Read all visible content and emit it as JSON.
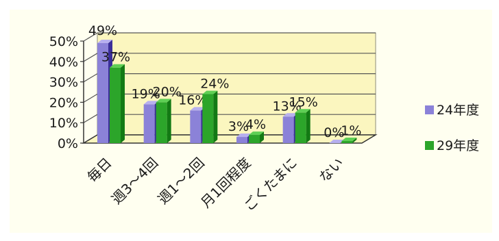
{
  "chart_data": {
    "type": "bar",
    "categories": [
      "毎日",
      "週3～4回",
      "週1～2回",
      "月1回程度",
      "ごくたまに",
      "ない"
    ],
    "series": [
      {
        "name": "24年度",
        "values": [
          49,
          19,
          16,
          3,
          13,
          0
        ],
        "labels": [
          "49%",
          "19%",
          "16%",
          "3%",
          "13%",
          "0%"
        ]
      },
      {
        "name": "29年度",
        "values": [
          37,
          20,
          24,
          4,
          15,
          1
        ],
        "labels": [
          "37%",
          "20%",
          "24%",
          "4%",
          "15%",
          "1%"
        ]
      }
    ],
    "y_ticks": [
      "0%",
      "10%",
      "20%",
      "30%",
      "40%",
      "50%"
    ],
    "ylim": [
      0,
      50
    ],
    "grid": true,
    "legend_position": "right",
    "colors": {
      "background": "#fffff0",
      "series": [
        "#8b82d8",
        "#2ca52a"
      ],
      "series_side": [
        "#3b2f99",
        "#137a14"
      ],
      "series_top": [
        "#b7b0ef",
        "#5fcf55"
      ],
      "back_wall": "#fbf6bf"
    }
  }
}
